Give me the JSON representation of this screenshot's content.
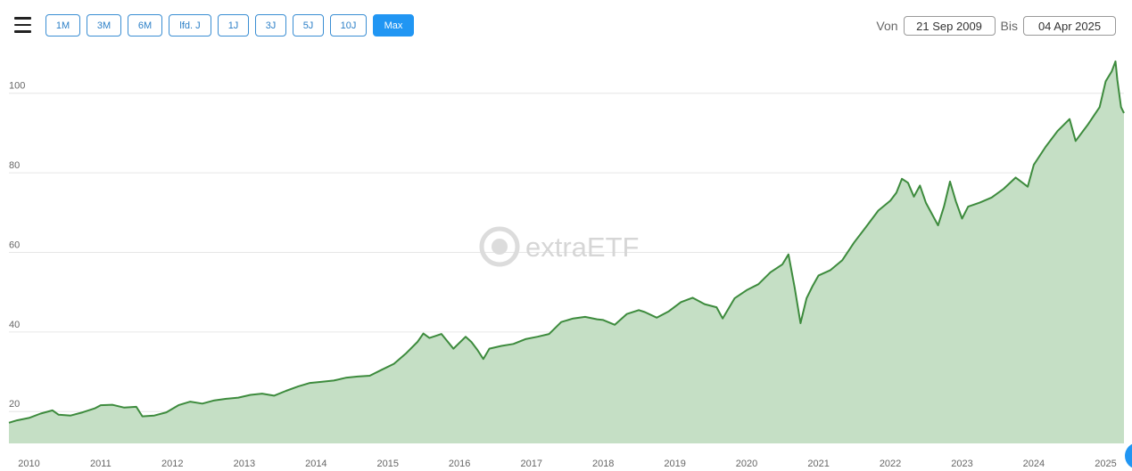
{
  "toolbar": {
    "menu_icon": "hamburger-menu-icon",
    "ranges": [
      {
        "label": "1M",
        "active": false
      },
      {
        "label": "3M",
        "active": false
      },
      {
        "label": "6M",
        "active": false
      },
      {
        "label": "lfd. J",
        "active": false
      },
      {
        "label": "1J",
        "active": false
      },
      {
        "label": "3J",
        "active": false
      },
      {
        "label": "5J",
        "active": false
      },
      {
        "label": "10J",
        "active": false
      },
      {
        "label": "Max",
        "active": true
      }
    ],
    "from_label": "Von",
    "from_value": "21 Sep 2009",
    "to_label": "Bis",
    "to_value": "04 Apr 2025"
  },
  "watermark": {
    "text": "extraETF",
    "icon": "extraetf-logo-icon"
  },
  "colors": {
    "line": "#3d8b3d",
    "fill": "#c5dfc5",
    "accent": "#2196f3",
    "grid": "#e6e6e6"
  },
  "chart_data": {
    "type": "area",
    "x_ticks": [
      "2010",
      "2011",
      "2012",
      "2013",
      "2014",
      "2015",
      "2016",
      "2017",
      "2018",
      "2019",
      "2020",
      "2021",
      "2022",
      "2023",
      "2024",
      "2025"
    ],
    "y_ticks": [
      20,
      40,
      60,
      80,
      100
    ],
    "xlim": [
      "2009-09-21",
      "2025-04-04"
    ],
    "ylim": [
      12,
      110
    ],
    "grid": true,
    "series": [
      {
        "points": [
          [
            "2009-09-21",
            17.2
          ],
          [
            "2009-11",
            17.8
          ],
          [
            "2010-01",
            18.4
          ],
          [
            "2010-03",
            19.5
          ],
          [
            "2010-05",
            20.3
          ],
          [
            "2010-06",
            19.2
          ],
          [
            "2010-08",
            19.0
          ],
          [
            "2010-10",
            19.8
          ],
          [
            "2010-12",
            20.8
          ],
          [
            "2011-01",
            21.6
          ],
          [
            "2011-03",
            21.7
          ],
          [
            "2011-05",
            21.0
          ],
          [
            "2011-07",
            21.2
          ],
          [
            "2011-08",
            18.8
          ],
          [
            "2011-10",
            19.0
          ],
          [
            "2011-12",
            19.8
          ],
          [
            "2012-02",
            21.6
          ],
          [
            "2012-04",
            22.5
          ],
          [
            "2012-06",
            22.0
          ],
          [
            "2012-08",
            22.8
          ],
          [
            "2012-10",
            23.2
          ],
          [
            "2012-12",
            23.5
          ],
          [
            "2013-02",
            24.2
          ],
          [
            "2013-04",
            24.5
          ],
          [
            "2013-06",
            24.0
          ],
          [
            "2013-08",
            25.2
          ],
          [
            "2013-10",
            26.3
          ],
          [
            "2013-12",
            27.2
          ],
          [
            "2014-02",
            27.5
          ],
          [
            "2014-04",
            27.8
          ],
          [
            "2014-06",
            28.5
          ],
          [
            "2014-08",
            28.8
          ],
          [
            "2014-10",
            29.0
          ],
          [
            "2014-12",
            30.5
          ],
          [
            "2015-02",
            32.0
          ],
          [
            "2015-04",
            34.5
          ],
          [
            "2015-06",
            37.5
          ],
          [
            "2015-07",
            39.6
          ],
          [
            "2015-08",
            38.5
          ],
          [
            "2015-09",
            39.0
          ],
          [
            "2015-10",
            39.5
          ],
          [
            "2015-12",
            35.8
          ],
          [
            "2016-02",
            38.8
          ],
          [
            "2016-03",
            37.5
          ],
          [
            "2016-04",
            35.5
          ],
          [
            "2016-05",
            33.2
          ],
          [
            "2016-06",
            35.8
          ],
          [
            "2016-08",
            36.5
          ],
          [
            "2016-10",
            37.0
          ],
          [
            "2016-12",
            38.2
          ],
          [
            "2017-02",
            38.8
          ],
          [
            "2017-04",
            39.5
          ],
          [
            "2017-06",
            42.5
          ],
          [
            "2017-08",
            43.4
          ],
          [
            "2017-10",
            43.8
          ],
          [
            "2017-12",
            43.2
          ],
          [
            "2018-01",
            43.0
          ],
          [
            "2018-03",
            41.8
          ],
          [
            "2018-05",
            44.5
          ],
          [
            "2018-07",
            45.5
          ],
          [
            "2018-08",
            45.0
          ],
          [
            "2018-10",
            43.6
          ],
          [
            "2018-12",
            45.2
          ],
          [
            "2019-02",
            47.5
          ],
          [
            "2019-04",
            48.6
          ],
          [
            "2019-06",
            47.0
          ],
          [
            "2019-08",
            46.2
          ],
          [
            "2019-09",
            43.4
          ],
          [
            "2019-11",
            48.5
          ],
          [
            "2020-01",
            50.5
          ],
          [
            "2020-03",
            52.0
          ],
          [
            "2020-05",
            55.0
          ],
          [
            "2020-07",
            57.0
          ],
          [
            "2020-08",
            59.5
          ],
          [
            "2020-09",
            51.2
          ],
          [
            "2020-10",
            42.2
          ],
          [
            "2020-11",
            48.5
          ],
          [
            "2020-12",
            51.5
          ],
          [
            "2021-01",
            54.2
          ],
          [
            "2021-03",
            55.5
          ],
          [
            "2021-05",
            58.0
          ],
          [
            "2021-07",
            62.5
          ],
          [
            "2021-09",
            66.5
          ],
          [
            "2021-11",
            70.5
          ],
          [
            "2022-01",
            73.0
          ],
          [
            "2022-02",
            75.0
          ],
          [
            "2022-03",
            78.5
          ],
          [
            "2022-04",
            77.5
          ],
          [
            "2022-05",
            74.0
          ],
          [
            "2022-06",
            76.8
          ],
          [
            "2022-07",
            72.5
          ],
          [
            "2022-09",
            66.8
          ],
          [
            "2022-10",
            71.5
          ],
          [
            "2022-11",
            77.8
          ],
          [
            "2022-12",
            72.8
          ],
          [
            "2023-01",
            68.5
          ],
          [
            "2023-02",
            71.5
          ],
          [
            "2023-04",
            72.5
          ],
          [
            "2023-06",
            73.8
          ],
          [
            "2023-08",
            76.0
          ],
          [
            "2023-10",
            78.8
          ],
          [
            "2023-12",
            76.5
          ],
          [
            "2024-01",
            82.0
          ],
          [
            "2024-03",
            86.5
          ],
          [
            "2024-05",
            90.5
          ],
          [
            "2024-07",
            93.5
          ],
          [
            "2024-08",
            88.0
          ],
          [
            "2024-10",
            92.0
          ],
          [
            "2024-12",
            96.5
          ],
          [
            "2025-01",
            103.0
          ],
          [
            "2025-02",
            105.5
          ],
          [
            "2025-02-20",
            108.0
          ],
          [
            "2025-03",
            103.5
          ],
          [
            "2025-03-20",
            96.5
          ],
          [
            "2025-04-04",
            95.0
          ]
        ]
      }
    ]
  }
}
